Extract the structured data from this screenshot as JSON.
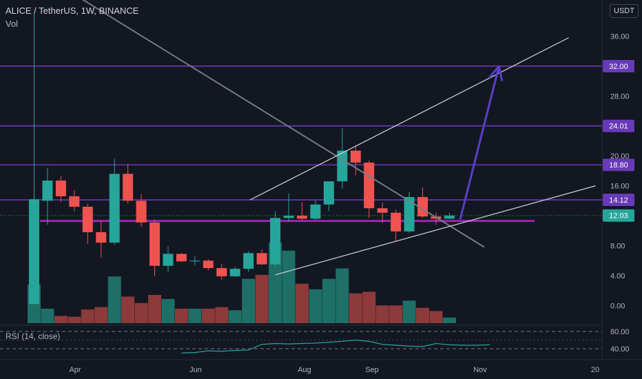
{
  "header": {
    "title": "ALICE / TetherUS, 1W, BINANCE",
    "volume_label": "Vol",
    "currency": "USDT"
  },
  "rsi": {
    "label": "RSI (14, close)",
    "ticks": [
      80.0,
      40.0
    ],
    "tick_labels": [
      "80.00",
      "40.00"
    ],
    "values": [
      30,
      31,
      35,
      34,
      36,
      37,
      50,
      52,
      51,
      52,
      53,
      55,
      57,
      60,
      57,
      50,
      48,
      46,
      45,
      52,
      49,
      48,
      48,
      49
    ]
  },
  "chart_data": {
    "type": "candlestick",
    "title": "ALICE / TetherUS, 1W, BINANCE",
    "ylim": [
      -2,
      39
    ],
    "y_ticks": [
      0,
      4,
      8,
      12,
      16,
      20,
      24,
      28,
      32,
      36
    ],
    "y_tick_labels": [
      "0.00",
      "4.00",
      "8.00",
      "12.00",
      "16.00",
      "20.00",
      "24.00",
      "28.00",
      "32.00",
      "36.00"
    ],
    "x_labels": [
      "Apr",
      "Jun",
      "Aug",
      "Sep",
      "Nov",
      "20"
    ],
    "last_price": "12.03",
    "candles": [
      {
        "o": 0.2,
        "h": 39.0,
        "l": 0.1,
        "c": 14.2
      },
      {
        "o": 14.0,
        "h": 18.4,
        "l": 10.8,
        "c": 16.7
      },
      {
        "o": 16.7,
        "h": 17.3,
        "l": 13.8,
        "c": 14.6
      },
      {
        "o": 14.6,
        "h": 15.4,
        "l": 12.6,
        "c": 13.2
      },
      {
        "o": 13.2,
        "h": 13.6,
        "l": 8.2,
        "c": 9.8
      },
      {
        "o": 9.8,
        "h": 11.4,
        "l": 6.4,
        "c": 8.4
      },
      {
        "o": 8.4,
        "h": 19.6,
        "l": 8.1,
        "c": 17.6
      },
      {
        "o": 17.6,
        "h": 18.9,
        "l": 13.6,
        "c": 14.0
      },
      {
        "o": 14.0,
        "h": 14.9,
        "l": 10.5,
        "c": 11.1
      },
      {
        "o": 11.1,
        "h": 11.5,
        "l": 3.9,
        "c": 5.3
      },
      {
        "o": 5.3,
        "h": 7.9,
        "l": 4.4,
        "c": 6.9
      },
      {
        "o": 6.9,
        "h": 7.0,
        "l": 5.8,
        "c": 5.9
      },
      {
        "o": 5.9,
        "h": 6.6,
        "l": 5.4,
        "c": 6.0
      },
      {
        "o": 6.0,
        "h": 6.2,
        "l": 4.7,
        "c": 5.0
      },
      {
        "o": 5.0,
        "h": 5.6,
        "l": 3.4,
        "c": 3.9
      },
      {
        "o": 3.9,
        "h": 5.2,
        "l": 3.8,
        "c": 4.9
      },
      {
        "o": 4.9,
        "h": 7.3,
        "l": 4.5,
        "c": 7.0
      },
      {
        "o": 7.0,
        "h": 7.5,
        "l": 5.4,
        "c": 5.5
      },
      {
        "o": 5.5,
        "h": 12.6,
        "l": 5.2,
        "c": 11.7
      },
      {
        "o": 11.7,
        "h": 15.0,
        "l": 11.2,
        "c": 12.0
      },
      {
        "o": 12.0,
        "h": 13.8,
        "l": 11.4,
        "c": 11.6
      },
      {
        "o": 11.6,
        "h": 14.1,
        "l": 11.4,
        "c": 13.5
      },
      {
        "o": 13.5,
        "h": 16.2,
        "l": 12.6,
        "c": 16.6
      },
      {
        "o": 16.6,
        "h": 23.7,
        "l": 15.6,
        "c": 20.7
      },
      {
        "o": 20.7,
        "h": 21.4,
        "l": 17.4,
        "c": 19.1
      },
      {
        "o": 19.1,
        "h": 19.4,
        "l": 11.7,
        "c": 13.0
      },
      {
        "o": 13.0,
        "h": 13.8,
        "l": 11.0,
        "c": 12.4
      },
      {
        "o": 12.4,
        "h": 12.8,
        "l": 8.6,
        "c": 9.9
      },
      {
        "o": 9.9,
        "h": 15.2,
        "l": 9.7,
        "c": 14.5
      },
      {
        "o": 14.5,
        "h": 15.8,
        "l": 11.7,
        "c": 11.9
      },
      {
        "o": 11.9,
        "h": 12.4,
        "l": 10.8,
        "c": 11.6
      },
      {
        "o": 11.6,
        "h": 12.4,
        "l": 11.5,
        "c": 12.03
      }
    ],
    "volumes": [
      48,
      18,
      9,
      8,
      17,
      20,
      58,
      33,
      25,
      35,
      30,
      18,
      18,
      18,
      20,
      16,
      55,
      60,
      100,
      90,
      49,
      42,
      55,
      68,
      37,
      39,
      22,
      22,
      28,
      19,
      15,
      7
    ],
    "horizontal_levels": [
      {
        "value": 32.0,
        "label": "32.00"
      },
      {
        "value": 24.01,
        "label": "24.01"
      },
      {
        "value": 18.8,
        "label": "18.80"
      },
      {
        "value": 14.12,
        "label": "14.12"
      }
    ],
    "support_level": 11.3,
    "trendlines": [
      {
        "from": [
          -1.0,
          46.0
        ],
        "to": [
          33.6,
          7.8
        ]
      },
      {
        "from": [
          16.1,
          14.1
        ],
        "to": [
          39.9,
          35.8
        ]
      },
      {
        "from": [
          18.0,
          4.1
        ],
        "to": [
          41.9,
          16.0
        ]
      }
    ],
    "projection_arrow": {
      "from": [
        31.8,
        11.5
      ],
      "to": [
        34.7,
        32.0
      ]
    }
  }
}
